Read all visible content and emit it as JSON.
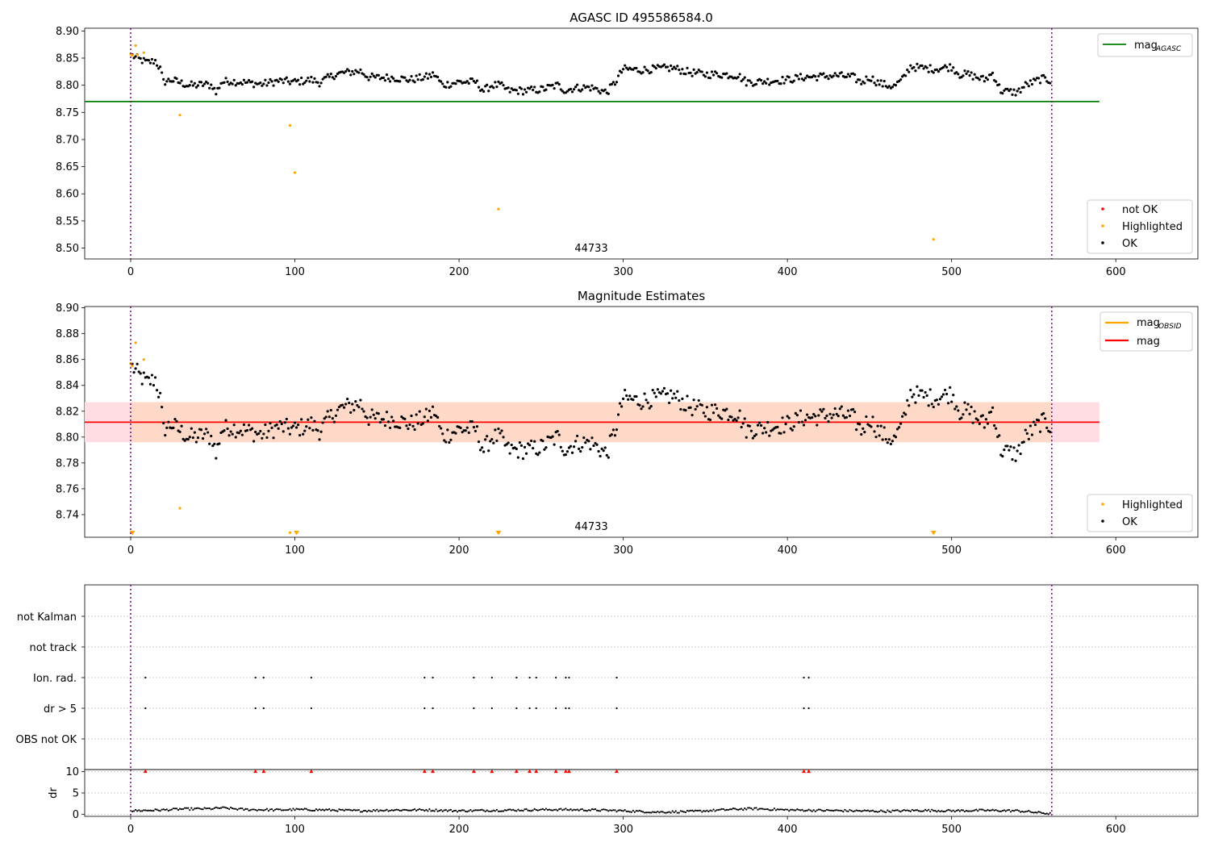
{
  "figure": {
    "title_top": "AGASC ID 495586584.0",
    "title_mid": "Magnitude Estimates",
    "obsid_label": "44733"
  },
  "colors": {
    "ok": "#000000",
    "highlighted": "#ffa500",
    "not_ok": "#ff0000",
    "mag_agasc": "#008000",
    "mag_obsid": "#ffa500",
    "mag": "#ff0000",
    "band_outer": "#ffdde3",
    "band_inner": "#ffd9c7",
    "obs_boundary": "#800080",
    "grid": "#b0b0b0"
  },
  "chart_data": [
    {
      "type": "scatter",
      "title": "AGASC ID 495586584.0",
      "xlim": [
        -28,
        650
      ],
      "ylim": [
        8.48,
        8.905
      ],
      "xticks": [
        0,
        100,
        200,
        300,
        400,
        500,
        600
      ],
      "yticks": [
        8.5,
        8.55,
        8.6,
        8.65,
        8.7,
        8.75,
        8.8,
        8.85,
        8.9
      ],
      "annotation": "44733",
      "lines": [
        {
          "name": "mag_AGASC",
          "y": 8.77,
          "x_range": [
            -28,
            590
          ]
        }
      ],
      "vlines": [
        0,
        561
      ],
      "legend_lines": [
        {
          "base": "mag",
          "sub": "AGASC"
        }
      ],
      "legend_markers": [
        "not OK",
        "Highlighted",
        "OK"
      ],
      "legend_placement": [
        "upper right",
        "lower right"
      ],
      "highlighted": [
        [
          0,
          8.857
        ],
        [
          1,
          8.855
        ],
        [
          3,
          8.873
        ],
        [
          4,
          8.856
        ],
        [
          8,
          8.86
        ],
        [
          30,
          8.745
        ],
        [
          97,
          8.726
        ],
        [
          100,
          8.639
        ],
        [
          224,
          8.572
        ],
        [
          489,
          8.516
        ]
      ],
      "ok_profile": [
        [
          0,
          8.856
        ],
        [
          5,
          8.848
        ],
        [
          10,
          8.842
        ],
        [
          15,
          8.845
        ],
        [
          18,
          8.83
        ],
        [
          20,
          8.806
        ],
        [
          25,
          8.81
        ],
        [
          30,
          8.805
        ],
        [
          35,
          8.8
        ],
        [
          40,
          8.8
        ],
        [
          45,
          8.802
        ],
        [
          50,
          8.799
        ],
        [
          52,
          8.785
        ],
        [
          55,
          8.805
        ],
        [
          60,
          8.808
        ],
        [
          70,
          8.805
        ],
        [
          80,
          8.802
        ],
        [
          90,
          8.808
        ],
        [
          100,
          8.806
        ],
        [
          110,
          8.81
        ],
        [
          115,
          8.805
        ],
        [
          120,
          8.813
        ],
        [
          125,
          8.82
        ],
        [
          130,
          8.823
        ],
        [
          140,
          8.826
        ],
        [
          145,
          8.815
        ],
        [
          150,
          8.814
        ],
        [
          160,
          8.814
        ],
        [
          170,
          8.81
        ],
        [
          180,
          8.815
        ],
        [
          185,
          8.82
        ],
        [
          190,
          8.8
        ],
        [
          200,
          8.806
        ],
        [
          210,
          8.806
        ],
        [
          215,
          8.79
        ],
        [
          220,
          8.8
        ],
        [
          225,
          8.8
        ],
        [
          230,
          8.79
        ],
        [
          240,
          8.79
        ],
        [
          250,
          8.792
        ],
        [
          260,
          8.8
        ],
        [
          265,
          8.79
        ],
        [
          270,
          8.795
        ],
        [
          280,
          8.796
        ],
        [
          290,
          8.787
        ],
        [
          295,
          8.805
        ],
        [
          300,
          8.83
        ],
        [
          310,
          8.828
        ],
        [
          320,
          8.83
        ],
        [
          330,
          8.832
        ],
        [
          340,
          8.824
        ],
        [
          350,
          8.82
        ],
        [
          360,
          8.82
        ],
        [
          370,
          8.818
        ],
        [
          375,
          8.806
        ],
        [
          380,
          8.806
        ],
        [
          390,
          8.808
        ],
        [
          400,
          8.81
        ],
        [
          410,
          8.815
        ],
        [
          420,
          8.816
        ],
        [
          430,
          8.818
        ],
        [
          440,
          8.815
        ],
        [
          445,
          8.805
        ],
        [
          450,
          8.815
        ],
        [
          455,
          8.805
        ],
        [
          460,
          8.8
        ],
        [
          465,
          8.798
        ],
        [
          470,
          8.81
        ],
        [
          475,
          8.835
        ],
        [
          480,
          8.832
        ],
        [
          490,
          8.83
        ],
        [
          500,
          8.834
        ],
        [
          505,
          8.82
        ],
        [
          510,
          8.82
        ],
        [
          520,
          8.81
        ],
        [
          525,
          8.822
        ],
        [
          530,
          8.79
        ],
        [
          535,
          8.788
        ],
        [
          540,
          8.787
        ],
        [
          545,
          8.8
        ],
        [
          550,
          8.806
        ],
        [
          555,
          8.812
        ],
        [
          561,
          8.808
        ]
      ],
      "ok_noise": 0.007,
      "ok_count": 560
    },
    {
      "type": "scatter",
      "title": "Magnitude Estimates",
      "xlim": [
        -28,
        650
      ],
      "ylim": [
        8.7225,
        8.901
      ],
      "xticks": [
        0,
        100,
        200,
        300,
        400,
        500,
        600
      ],
      "yticks": [
        8.74,
        8.76,
        8.78,
        8.8,
        8.82,
        8.84,
        8.86,
        8.88,
        8.9
      ],
      "annotation": "44733",
      "lines": [
        {
          "name": "mag",
          "y": 8.8115,
          "x_range": [
            -28,
            590
          ]
        }
      ],
      "bands": [
        {
          "y0": 8.796,
          "y1": 8.827,
          "x_range": [
            -28,
            590
          ],
          "fill": "outer"
        },
        {
          "y0": 8.796,
          "y1": 8.827,
          "x_range": [
            0,
            561
          ],
          "fill": "inner"
        }
      ],
      "vlines": [
        0,
        561
      ],
      "legend_lines": [
        {
          "base": "mag",
          "sub": "OBSID"
        },
        {
          "base": "mag",
          "sub": ""
        }
      ],
      "legend_markers": [
        "Highlighted",
        "OK"
      ],
      "legend_placement": [
        "upper right",
        "lower right"
      ],
      "highlighted": [
        [
          0,
          8.857
        ],
        [
          1,
          8.855
        ],
        [
          3,
          8.873
        ],
        [
          8,
          8.86
        ],
        [
          30,
          8.745
        ],
        [
          97,
          8.726
        ]
      ],
      "highlighted_offscale": [
        [
          1,
          8.725
        ],
        [
          101,
          8.725
        ],
        [
          224,
          8.725
        ],
        [
          489,
          8.725
        ]
      ],
      "ok_profile": "same as panel 1 ok_profile",
      "ok_noise": 0.007
    },
    {
      "type": "scatter",
      "title": "",
      "xlim": [
        -28,
        650
      ],
      "categories": [
        "OBS not OK",
        "dr > 5",
        "Ion. rad.",
        "not track",
        "not Kalman"
      ],
      "flag_x": [
        9,
        76,
        81,
        110,
        179,
        184,
        209,
        220,
        235,
        243,
        247,
        259,
        265,
        267,
        296,
        410,
        413
      ],
      "flag_rows": [
        "dr > 5",
        "Ion. rad."
      ],
      "vlines": [
        0,
        561
      ]
    },
    {
      "type": "scatter",
      "title": "",
      "ylabel": "dr",
      "xlim": [
        -28,
        650
      ],
      "ylim": [
        -0.5,
        10.5
      ],
      "yticks": [
        0,
        5,
        10
      ],
      "xticks": [
        0,
        100,
        200,
        300,
        400,
        500,
        600
      ],
      "dr_profile": [
        [
          0,
          0.8
        ],
        [
          20,
          1.0
        ],
        [
          30,
          1.2
        ],
        [
          50,
          1.3
        ],
        [
          55,
          1.5
        ],
        [
          70,
          1.1
        ],
        [
          90,
          1.0
        ],
        [
          100,
          1.1
        ],
        [
          120,
          1.0
        ],
        [
          140,
          0.8
        ],
        [
          160,
          1.0
        ],
        [
          180,
          1.0
        ],
        [
          200,
          0.8
        ],
        [
          220,
          0.9
        ],
        [
          240,
          1.0
        ],
        [
          260,
          1.1
        ],
        [
          280,
          1.0
        ],
        [
          300,
          0.8
        ],
        [
          320,
          0.5
        ],
        [
          340,
          0.6
        ],
        [
          360,
          1.0
        ],
        [
          370,
          1.2
        ],
        [
          380,
          1.3
        ],
        [
          400,
          1.0
        ],
        [
          420,
          0.9
        ],
        [
          440,
          0.8
        ],
        [
          460,
          0.7
        ],
        [
          480,
          0.9
        ],
        [
          500,
          0.8
        ],
        [
          520,
          0.9
        ],
        [
          540,
          0.8
        ],
        [
          561,
          0.1
        ]
      ],
      "flag_x": [
        9,
        76,
        81,
        110,
        179,
        184,
        209,
        220,
        235,
        243,
        247,
        259,
        265,
        267,
        296,
        410,
        413
      ],
      "flag_y": 10,
      "vlines": [
        0,
        561
      ]
    }
  ]
}
